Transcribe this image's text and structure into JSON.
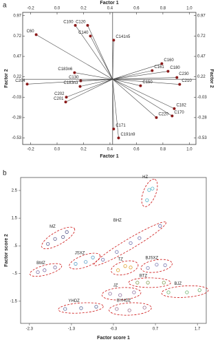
{
  "chart_data": [
    {
      "type": "biplot",
      "panel": "a",
      "x_label": "Factor 1",
      "y_label": "Factor 2",
      "xlim": [
        -0.26,
        1.05
      ],
      "ylim": [
        -0.61,
        1.01
      ],
      "xticks": [
        -0.2,
        {
          "value": 0,
          "label": "0.0"
        },
        0.2,
        0.4,
        0.6,
        0.8,
        {
          "value": 1,
          "label": "1.0"
        }
      ],
      "yticks": [
        0.97,
        0.72,
        0.47,
        0.22,
        -0.03,
        -0.28,
        -0.53
      ],
      "reference_lines": {
        "x": 0.42,
        "y": 0.19
      },
      "series": [
        {
          "color": "#8b1a1a",
          "point_labels": [
            "C60",
            "C100",
            "C120",
            "C140",
            "C141n5",
            "C160",
            "C161",
            "C180",
            "C230",
            "C210",
            "C183n6",
            "C130",
            "C183n3",
            "C204",
            "C202",
            "C201",
            "C150",
            "C182",
            "C170",
            "C220",
            "C171",
            "C191n9"
          ],
          "x": [
            -0.158,
            0.138,
            0.231,
            0.252,
            0.428,
            0.792,
            0.719,
            0.839,
            0.906,
            0.927,
            0.132,
            0.179,
            0.174,
            -0.226,
            0.07,
            0.065,
            0.631,
            0.886,
            0.87,
            0.751,
            0.428,
            0.465
          ],
          "values": [
            0.737,
            0.851,
            0.851,
            0.72,
            0.669,
            0.381,
            0.296,
            0.288,
            0.212,
            0.127,
            0.271,
            0.17,
            0.102,
            0.13,
            -0.03,
            -0.089,
            0.11,
            -0.17,
            -0.26,
            -0.28,
            -0.42,
            -0.53
          ]
        }
      ]
    },
    {
      "type": "scatter",
      "panel": "b",
      "x_label": "Factor score 1",
      "y_label": "Factor score 2",
      "xlim": [
        -2.51,
        1.91
      ],
      "ylim": [
        -2.3,
        2.97
      ],
      "xticks": [
        -2.3,
        -1.3,
        -0.3,
        0.7,
        1.7
      ],
      "yticks": [
        2.5,
        1.5,
        {
          "value": 0.5,
          "label": ".5"
        },
        {
          "value": -0.5,
          "label": "-.5"
        },
        -1.5
      ],
      "ellipse_color": "#cc1111",
      "series": [
        {
          "name": "HZ",
          "color": "#4bb3c8",
          "x": [
            0.5,
            0.55,
            0.63
          ],
          "values": [
            2.15,
            2.52,
            2.57
          ]
        },
        {
          "name": "MZ",
          "color": "#5a5a8c",
          "x": [
            -1.86,
            -1.69,
            -1.5,
            -1.41
          ],
          "values": [
            0.57,
            0.75,
            0.82,
            1.0
          ]
        },
        {
          "name": "BHZ",
          "color": "#6a6aa8",
          "x": [
            -0.55,
            -0.22,
            0.11,
            0.32,
            0.81
          ],
          "values": [
            0.0,
            0.28,
            0.6,
            0.78,
            1.22
          ]
        },
        {
          "name": "JSXZ",
          "color": "#5aa0c8",
          "x": [
            -1.2,
            -0.96,
            -0.79
          ],
          "values": [
            -0.15,
            -0.08,
            0.08
          ]
        },
        {
          "name": "BMZ",
          "color": "#7a6aa0",
          "x": [
            -2.1,
            -1.94,
            -1.69
          ],
          "values": [
            -0.45,
            -0.38,
            -0.28
          ]
        },
        {
          "name": "TZ",
          "color": "#e0a030",
          "x": [
            -0.19,
            -0.02,
            0.11
          ],
          "values": [
            -0.38,
            -0.23,
            -0.28
          ]
        },
        {
          "name": "BJSXZ",
          "color": "#7a7ab0",
          "x": [
            0.52,
            0.73,
            0.93
          ],
          "values": [
            -0.3,
            -0.18,
            -0.2
          ]
        },
        {
          "name": "BTZ",
          "color": "#8aa05a",
          "x": [
            0.27,
            0.52,
            0.9
          ],
          "values": [
            -0.83,
            -0.83,
            -0.83
          ]
        },
        {
          "name": "BJZ",
          "color": "#6ab06a",
          "x": [
            1.01,
            1.45,
            1.75
          ],
          "values": [
            -1.18,
            -1.18,
            -1.1
          ]
        },
        {
          "name": "JZ",
          "color": "#8a6a9a",
          "x": [
            -0.38,
            -0.14,
            0.19
          ],
          "values": [
            -1.23,
            -1.28,
            -1.18
          ]
        },
        {
          "name": "YHDZ",
          "color": "#5a6a9a",
          "x": [
            -1.45,
            -1.07,
            -0.71
          ],
          "values": [
            -1.78,
            -1.75,
            -1.7
          ]
        },
        {
          "name": "BYHDZ",
          "color": "#9a6a8a",
          "x": [
            -0.22,
            0.08,
            0.44
          ],
          "values": [
            -1.78,
            -1.83,
            -1.73
          ]
        }
      ]
    }
  ]
}
